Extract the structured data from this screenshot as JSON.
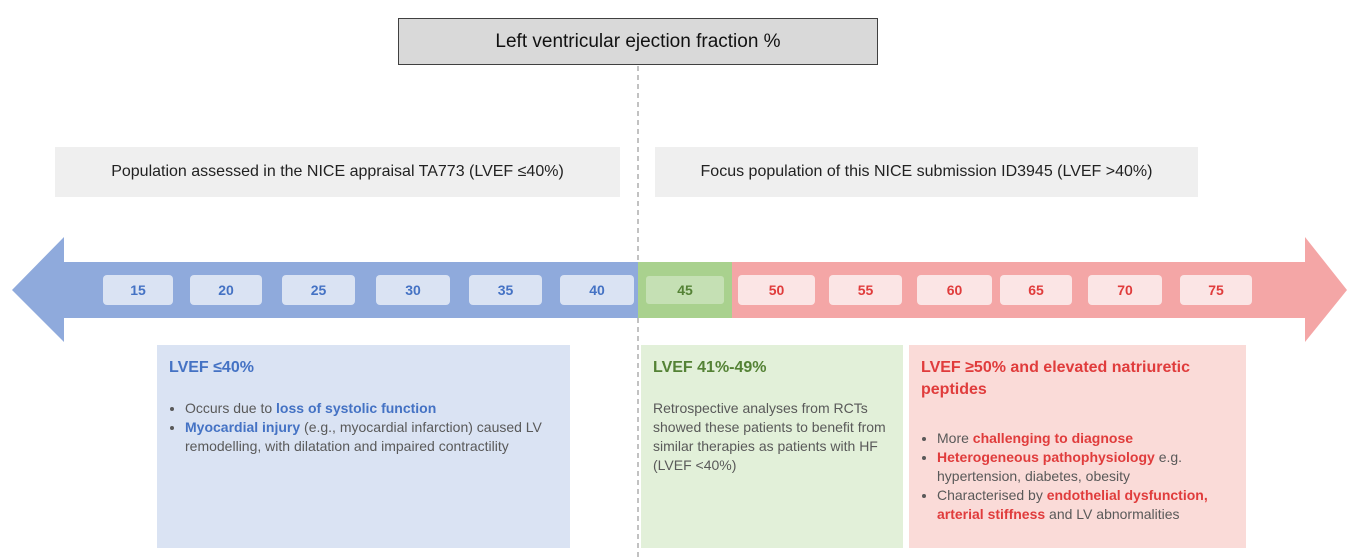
{
  "title": "Left ventricular ejection fraction %",
  "bands": {
    "left": "Population assessed in the NICE appraisal TA773 (LVEF ≤40%)",
    "right": "Focus population of this NICE submission ID3945 (LVEF >40%)"
  },
  "scale": [
    15,
    20,
    25,
    30,
    35,
    40,
    45,
    50,
    55,
    60,
    65,
    70,
    75
  ],
  "panels": [
    {
      "heading": "LVEF ≤40%",
      "bullets": [
        [
          {
            "text": "Occurs due to "
          },
          {
            "text": "loss of systolic function",
            "emph": true
          }
        ],
        [
          {
            "text": "Myocardial injury",
            "emph": true
          },
          {
            "text": " (e.g., myocardial infarction) caused LV remodelling, with dilatation and impaired contractility"
          }
        ]
      ]
    },
    {
      "heading": "LVEF 41%-49%",
      "body": "Retrospective analyses from RCTs showed these patients to benefit from similar therapies as patients with HF (LVEF <40%)"
    },
    {
      "heading": "LVEF ≥50% and elevated natriuretic peptides",
      "bullets": [
        [
          {
            "text": "More "
          },
          {
            "text": "challenging to diagnose",
            "emph": true
          }
        ],
        [
          {
            "text": "Heterogeneous pathophysiology",
            "emph": true
          },
          {
            "text": " e.g. hypertension, diabetes, obesity"
          }
        ],
        [
          {
            "text": "Characterised by "
          },
          {
            "text": "endothelial dysfunction, arterial stiffness",
            "emph": true
          },
          {
            "text": " and LV abnormalities"
          }
        ]
      ]
    }
  ]
}
